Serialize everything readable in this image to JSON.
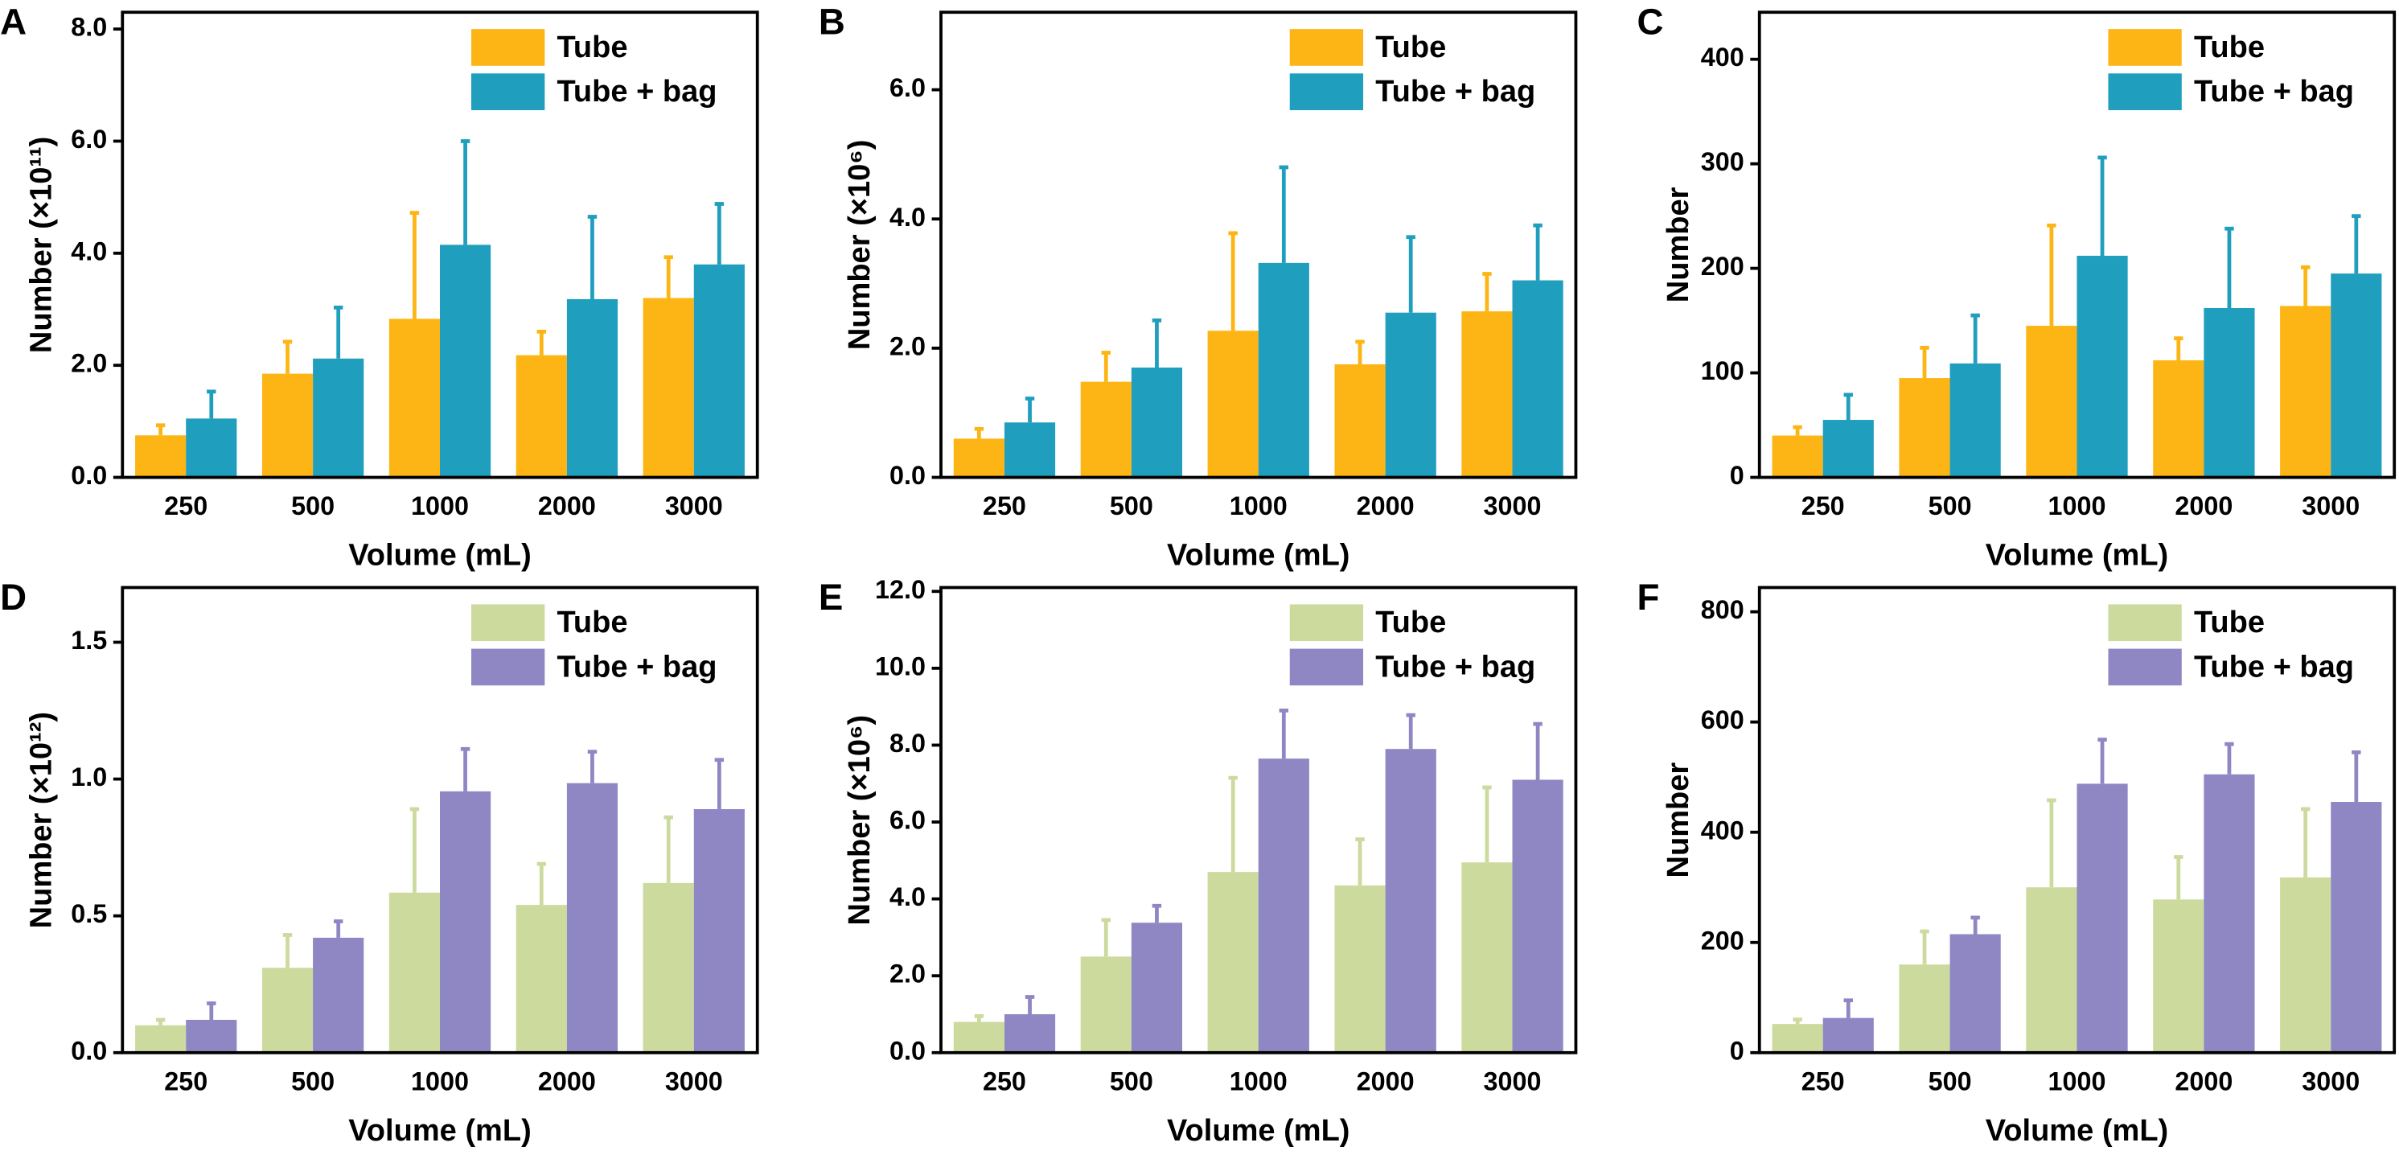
{
  "chart_data": [
    {
      "type": "bar",
      "panel": "A",
      "xlabel": "Volume (mL)",
      "ylabel": "Number (×10¹¹)",
      "categories": [
        "250",
        "500",
        "1000",
        "2000",
        "3000"
      ],
      "series": [
        {
          "name": "Tube",
          "color": "#FDB515",
          "values": [
            0.75,
            1.85,
            2.83,
            2.18,
            3.2
          ],
          "errors": [
            0.18,
            0.57,
            1.89,
            0.42,
            0.73
          ]
        },
        {
          "name": "Tube + bag",
          "color": "#1F9EBE",
          "values": [
            1.05,
            2.12,
            4.15,
            3.18,
            3.8
          ],
          "errors": [
            0.48,
            0.91,
            1.85,
            1.47,
            1.08
          ]
        }
      ],
      "ylim": [
        0,
        8.3
      ],
      "yticks": [
        {
          "value": 0,
          "label": "0.0"
        },
        {
          "value": 2,
          "label": "2.0"
        },
        {
          "value": 4,
          "label": "4.0"
        },
        {
          "value": 6,
          "label": "6.0"
        },
        {
          "value": 8,
          "label": "8.0"
        }
      ],
      "legend": "upper right"
    },
    {
      "type": "bar",
      "panel": "B",
      "xlabel": "Volume (mL)",
      "ylabel": "Number (×10⁶)",
      "categories": [
        "250",
        "500",
        "1000",
        "2000",
        "3000"
      ],
      "series": [
        {
          "name": "Tube",
          "color": "#FDB515",
          "values": [
            0.6,
            1.48,
            2.27,
            1.75,
            2.57
          ],
          "errors": [
            0.15,
            0.45,
            1.51,
            0.35,
            0.58
          ]
        },
        {
          "name": "Tube + bag",
          "color": "#1F9EBE",
          "values": [
            0.85,
            1.7,
            3.32,
            2.55,
            3.05
          ],
          "errors": [
            0.37,
            0.73,
            1.48,
            1.17,
            0.85
          ]
        }
      ],
      "ylim": [
        0,
        7.2
      ],
      "yticks": [
        {
          "value": 0,
          "label": "0.0"
        },
        {
          "value": 2,
          "label": "2.0"
        },
        {
          "value": 4,
          "label": "4.0"
        },
        {
          "value": 6,
          "label": "6.0"
        }
      ],
      "legend": "upper right"
    },
    {
      "type": "bar",
      "panel": "C",
      "xlabel": "Volume (mL)",
      "ylabel": "Number",
      "categories": [
        "250",
        "500",
        "1000",
        "2000",
        "3000"
      ],
      "series": [
        {
          "name": "Tube",
          "color": "#FDB515",
          "values": [
            40,
            95,
            145,
            112,
            164
          ],
          "errors": [
            8,
            29,
            96,
            21,
            37
          ]
        },
        {
          "name": "Tube + bag",
          "color": "#1F9EBE",
          "values": [
            55,
            109,
            212,
            162,
            195
          ],
          "errors": [
            24,
            46,
            94,
            76,
            55
          ]
        }
      ],
      "ylim": [
        0,
        445
      ],
      "yticks": [
        0,
        100,
        200,
        300,
        400
      ],
      "legend": "upper right"
    },
    {
      "type": "bar",
      "panel": "D",
      "xlabel": "Volume (mL)",
      "ylabel": "Number (×10¹²)",
      "categories": [
        "250",
        "500",
        "1000",
        "2000",
        "3000"
      ],
      "series": [
        {
          "name": "Tube",
          "color": "#CCDA9E",
          "values": [
            0.1,
            0.31,
            0.585,
            0.54,
            0.62
          ],
          "errors": [
            0.02,
            0.12,
            0.305,
            0.15,
            0.24
          ]
        },
        {
          "name": "Tube + bag",
          "color": "#8E87C4",
          "values": [
            0.12,
            0.42,
            0.955,
            0.985,
            0.89
          ],
          "errors": [
            0.06,
            0.06,
            0.155,
            0.115,
            0.18
          ]
        }
      ],
      "ylim": [
        0,
        1.7
      ],
      "yticks": [
        {
          "value": 0,
          "label": "0.0"
        },
        0.5,
        {
          "value": 1,
          "label": "1.0"
        },
        1.5
      ],
      "legend": "upper right"
    },
    {
      "type": "bar",
      "panel": "E",
      "xlabel": "Volume (mL)",
      "ylabel": "Number (×10⁶)",
      "categories": [
        "250",
        "500",
        "1000",
        "2000",
        "3000"
      ],
      "series": [
        {
          "name": "Tube",
          "color": "#CCDA9E",
          "values": [
            0.8,
            2.5,
            4.7,
            4.35,
            4.95
          ],
          "errors": [
            0.15,
            0.95,
            2.45,
            1.2,
            1.95
          ]
        },
        {
          "name": "Tube + bag",
          "color": "#8E87C4",
          "values": [
            1.0,
            3.38,
            7.65,
            7.9,
            7.1
          ],
          "errors": [
            0.45,
            0.44,
            1.25,
            0.88,
            1.45
          ]
        }
      ],
      "ylim": [
        0,
        12.1
      ],
      "yticks": [
        {
          "value": 0,
          "label": "0.0"
        },
        {
          "value": 2,
          "label": "2.0"
        },
        {
          "value": 4,
          "label": "4.0"
        },
        {
          "value": 6,
          "label": "6.0"
        },
        {
          "value": 8,
          "label": "8.0"
        },
        {
          "value": 10,
          "label": "10.0"
        },
        {
          "value": 12,
          "label": "12.0"
        }
      ],
      "legend": "upper right"
    },
    {
      "type": "bar",
      "panel": "F",
      "xlabel": "Volume (mL)",
      "ylabel": "Number",
      "categories": [
        "250",
        "500",
        "1000",
        "2000",
        "3000"
      ],
      "series": [
        {
          "name": "Tube",
          "color": "#CCDA9E",
          "values": [
            52,
            160,
            300,
            278,
            318
          ],
          "errors": [
            8,
            60,
            158,
            77,
            124
          ]
        },
        {
          "name": "Tube + bag",
          "color": "#8E87C4",
          "values": [
            63,
            215,
            488,
            505,
            455
          ],
          "errors": [
            32,
            30,
            80,
            55,
            90
          ]
        }
      ],
      "ylim": [
        0,
        844
      ],
      "yticks": [
        0,
        200,
        400,
        600,
        800
      ],
      "legend": "upper right"
    }
  ]
}
